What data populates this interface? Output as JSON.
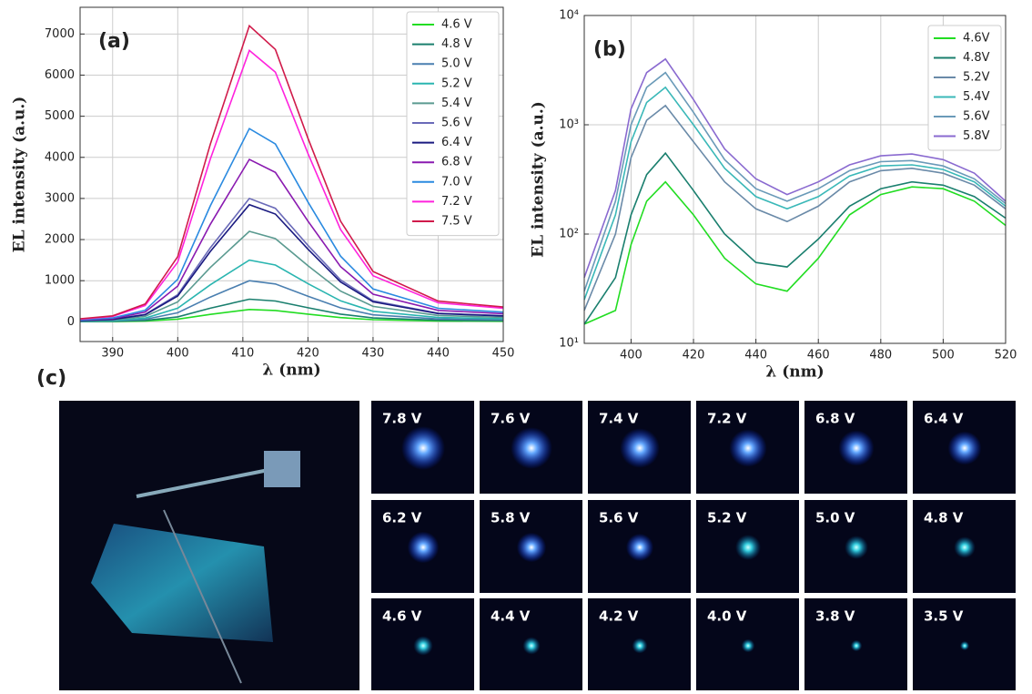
{
  "chart_data": [
    {
      "type": "line",
      "panel_label": "(a)",
      "xlabel": "λ (nm)",
      "ylabel": "EL intensity (a.u.)",
      "x": [
        385,
        390,
        395,
        400,
        405,
        411,
        415,
        420,
        425,
        430,
        440,
        450
      ],
      "xlim": [
        385,
        450
      ],
      "xticks": [
        390,
        400,
        410,
        420,
        430,
        440,
        450
      ],
      "ylim": [
        -480,
        7650
      ],
      "yticks": [
        0,
        1000,
        2000,
        3000,
        4000,
        5000,
        6000,
        7000
      ],
      "grid": true,
      "log": false,
      "legend": "upper right",
      "series": [
        {
          "name": "4.6 V",
          "color": "#22dd22",
          "values": [
            3,
            6,
            18,
            66,
            180,
            300,
            276,
            186,
            102,
            51,
            21,
            15
          ]
        },
        {
          "name": "4.8 V",
          "color": "#1a7f6e",
          "values": [
            6,
            11,
            33,
            121,
            330,
            550,
            506,
            341,
            187,
            94,
            39,
            28
          ]
        },
        {
          "name": "5.0 V",
          "color": "#4a7fb0",
          "values": [
            10,
            20,
            60,
            220,
            600,
            1000,
            920,
            620,
            340,
            170,
            70,
            50
          ]
        },
        {
          "name": "5.2 V",
          "color": "#2ab5b0",
          "values": [
            15,
            30,
            90,
            330,
            900,
            1500,
            1380,
            930,
            510,
            255,
            105,
            75
          ]
        },
        {
          "name": "5.4 V",
          "color": "#5a9a90",
          "values": [
            22,
            44,
            132,
            484,
            1320,
            2200,
            2024,
            1364,
            748,
            374,
            154,
            110
          ]
        },
        {
          "name": "5.6 V",
          "color": "#6a6ab8",
          "values": [
            30,
            60,
            180,
            660,
            1800,
            3000,
            2760,
            1860,
            1020,
            510,
            210,
            150
          ]
        },
        {
          "name": "6.4 V",
          "color": "#1a1a80",
          "values": [
            29,
            57,
            171,
            627,
            1710,
            2850,
            2622,
            1767,
            969,
            485,
            200,
            143
          ]
        },
        {
          "name": "6.8 V",
          "color": "#8a1ab0",
          "values": [
            40,
            79,
            237,
            869,
            2370,
            3950,
            3634,
            2449,
            1343,
            672,
            277,
            198
          ]
        },
        {
          "name": "7.0 V",
          "color": "#2a8ae0",
          "values": [
            47,
            94,
            282,
            1034,
            2820,
            4700,
            4324,
            2914,
            1598,
            799,
            329,
            235
          ]
        },
        {
          "name": "7.2 V",
          "color": "#ff22dd",
          "values": [
            66,
            132,
            396,
            1452,
            3960,
            6600,
            6072,
            4092,
            2244,
            1122,
            462,
            330
          ]
        },
        {
          "name": "7.5 V",
          "color": "#d01a4a",
          "values": [
            72,
            144,
            432,
            1584,
            4320,
            7200,
            6624,
            4464,
            2448,
            1224,
            504,
            360
          ]
        }
      ]
    },
    {
      "type": "line",
      "panel_label": "(b)",
      "xlabel": "λ (nm)",
      "ylabel": "EL intensity (a.u.)",
      "x": [
        385,
        395,
        400,
        405,
        411,
        420,
        430,
        440,
        450,
        460,
        470,
        480,
        490,
        500,
        510,
        520
      ],
      "xlim": [
        385,
        520
      ],
      "xticks": [
        400,
        420,
        440,
        460,
        480,
        500,
        520
      ],
      "ylim": [
        10,
        10000
      ],
      "yticks": [
        {
          "value": 10,
          "label": "10¹"
        },
        {
          "value": 100,
          "label": "10²"
        },
        {
          "value": 1000,
          "label": "10³"
        },
        {
          "value": 10000,
          "label": "10⁴"
        }
      ],
      "grid": true,
      "log": true,
      "legend": "upper right",
      "series": [
        {
          "name": "4.6V",
          "color": "#22dd22",
          "values": [
            15,
            20,
            80,
            200,
            300,
            150,
            60,
            35,
            30,
            60,
            150,
            230,
            270,
            260,
            200,
            120
          ]
        },
        {
          "name": "4.8V",
          "color": "#1a7f6e",
          "values": [
            15,
            40,
            150,
            350,
            550,
            250,
            100,
            55,
            50,
            90,
            180,
            260,
            300,
            280,
            220,
            140
          ]
        },
        {
          "name": "5.2V",
          "color": "#6a8aa8",
          "values": [
            20,
            100,
            500,
            1100,
            1500,
            700,
            300,
            170,
            130,
            180,
            300,
            380,
            400,
            360,
            280,
            170
          ]
        },
        {
          "name": "5.4V",
          "color": "#3ab8b8",
          "values": [
            25,
            150,
            700,
            1600,
            2200,
            1000,
            400,
            220,
            170,
            220,
            340,
            420,
            430,
            390,
            300,
            180
          ]
        },
        {
          "name": "5.6V",
          "color": "#6a9ab8",
          "values": [
            30,
            200,
            1000,
            2200,
            3000,
            1300,
            480,
            260,
            200,
            260,
            380,
            460,
            470,
            420,
            320,
            190
          ]
        },
        {
          "name": "5.8V",
          "color": "#8a6ad0",
          "values": [
            40,
            250,
            1400,
            3000,
            4000,
            1700,
            600,
            320,
            230,
            300,
            430,
            520,
            540,
            480,
            360,
            200
          ]
        }
      ]
    }
  ],
  "panel_c": {
    "label": "(c)",
    "images": [
      "7.8 V",
      "7.6 V",
      "7.4 V",
      "7.2 V",
      "6.8 V",
      "6.4 V",
      "6.2 V",
      "5.8 V",
      "5.6 V",
      "5.2 V",
      "5.0 V",
      "4.8 V",
      "4.6 V",
      "4.4 V",
      "4.2 V",
      "4.0 V",
      "3.8 V",
      "3.5 V"
    ]
  }
}
